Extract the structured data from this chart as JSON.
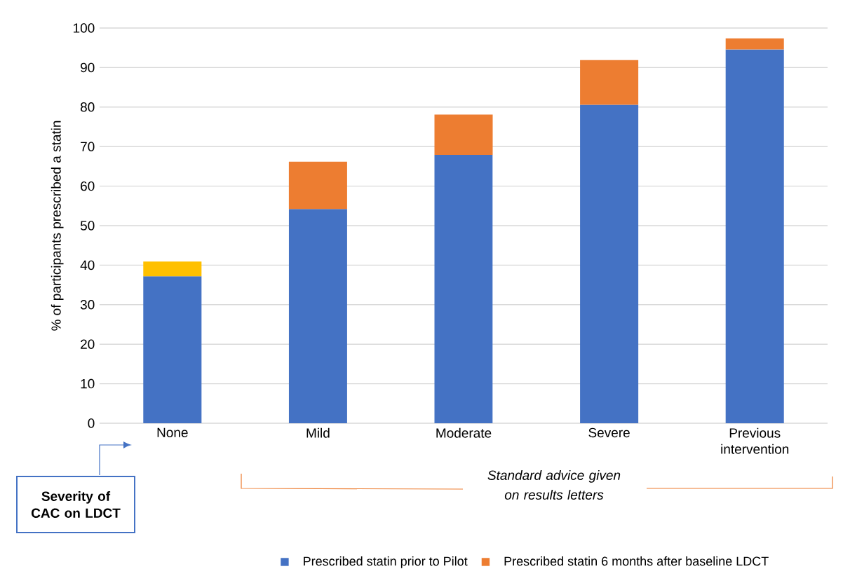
{
  "chart_data": {
    "type": "bar",
    "stacked": true,
    "ylabel": "% of participants prescribed a statin",
    "categories": [
      "None",
      "Mild",
      "Moderate",
      "Severe",
      "Previous intervention"
    ],
    "series": [
      {
        "name": "Prescribed statin prior to Pilot",
        "color": "#4472c4",
        "values": [
          37.2,
          54.2,
          67.9,
          80.6,
          94.6
        ]
      },
      {
        "name": "Prescribed statin 6 months after baseline LDCT",
        "color": "#ed7d31",
        "colors": [
          "#ffc000",
          "#ed7d31",
          "#ed7d31",
          "#ed7d31",
          "#ed7d31"
        ],
        "values": [
          3.7,
          12.0,
          10.2,
          11.3,
          2.8
        ]
      }
    ],
    "ylim": [
      0,
      100
    ],
    "yticks": [
      0,
      10,
      20,
      30,
      40,
      50,
      60,
      70,
      80,
      90,
      100
    ],
    "grid": "y",
    "legend": "bottom",
    "annotations": [
      "Severity of CAC on LDCT",
      "Standard advice given on results letters"
    ]
  }
}
